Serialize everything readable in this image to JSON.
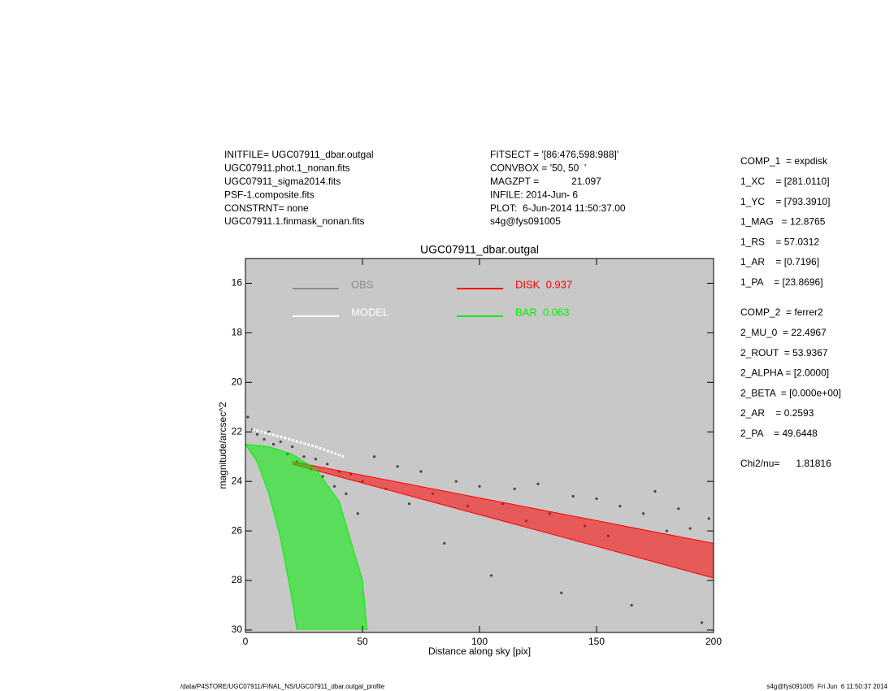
{
  "header": {
    "left": [
      "INITFILE= UGC07911_dbar.outgal",
      "UGC07911.phot.1_nonan.fits",
      "UGC07911_sigma2014.fits",
      "PSF-1.composite.fits",
      "CONSTRNT= none",
      "UGC07911.1.finmask_nonan.fits"
    ],
    "middle": [
      "FITSECT = '[86:476,598:988]'",
      "CONVBOX = '50, 50  '",
      "MAGZPT =            21.097",
      "INFILE: 2014-Jun- 6",
      "PLOT:  6-Jun-2014 11:50:37.00",
      "s4g@fys091005"
    ]
  },
  "parameters": [
    [
      "COMP_1  = expdisk",
      "1_XC    = [281.0110]",
      "1_YC    = [793.3910]",
      "1_MAG   = 12.8765",
      "1_RS    = 57.0312",
      "1_AR    = [0.7196]",
      "1_PA    = [23.8696]"
    ],
    [
      "COMP_2  = ferrer2",
      "2_MU_0  = 22.4967",
      "2_ROUT  = 53.9367",
      "2_ALPHA = [2.0000]",
      "2_BETA  = [0.000e+00]",
      "2_AR    = 0.2593",
      "2_PA    = 49.6448"
    ],
    [
      "Chi2/nu=      1.81816"
    ]
  ],
  "footer": {
    "left": "/data/P4STORE/UGC07911/FINAL_NS/UGC07911_dbar.outgal_profile",
    "right": "s4g@fys091005  Fri Jun  6 11:50:37 2014"
  },
  "chart_data": {
    "type": "scatter",
    "title": "UGC07911_dbar.outgal",
    "x_label": "Distance along sky [pix]",
    "y_label": "magnitude/arcsec^2",
    "xlim": [
      0,
      200
    ],
    "xticks": [
      0,
      50,
      100,
      150,
      200
    ],
    "ylim": [
      15,
      30.1
    ],
    "y_inverted": true,
    "yticks": [
      16,
      18,
      20,
      22,
      24,
      26,
      28,
      30
    ],
    "background": "#c8c8c8",
    "series": [
      {
        "name": "OBS",
        "kind": "points",
        "color": "#444444",
        "legend_color": "#8c8c8c",
        "x": [
          1,
          3,
          5,
          8,
          10,
          12,
          15,
          18,
          20,
          22,
          25,
          28,
          30,
          33,
          35,
          38,
          40,
          43,
          45,
          48,
          50,
          55,
          60,
          65,
          70,
          75,
          80,
          85,
          90,
          95,
          100,
          105,
          110,
          115,
          120,
          125,
          130,
          135,
          140,
          145,
          150,
          155,
          160,
          165,
          170,
          175,
          180,
          185,
          190,
          195,
          198
        ],
        "values": [
          21.4,
          21.9,
          22.1,
          22.3,
          22.0,
          22.5,
          22.4,
          22.9,
          22.6,
          23.2,
          23.0,
          23.5,
          23.1,
          23.8,
          23.3,
          24.2,
          23.6,
          24.5,
          23.7,
          25.3,
          24.0,
          23.0,
          24.3,
          23.4,
          24.9,
          23.6,
          24.5,
          26.5,
          24.0,
          25.0,
          24.2,
          27.8,
          24.9,
          24.3,
          25.6,
          24.1,
          25.3,
          28.5,
          24.6,
          25.8,
          24.7,
          26.2,
          25.0,
          29.0,
          25.3,
          24.4,
          26.0,
          25.1,
          25.9,
          29.7,
          25.5
        ]
      },
      {
        "name": "MODEL",
        "kind": "line",
        "color": "#ffffff",
        "x": [
          3,
          15,
          30,
          42
        ],
        "values": [
          21.9,
          22.2,
          22.6,
          23.0
        ]
      },
      {
        "name": "DISK  0.937",
        "kind": "band",
        "color": "#ff0000",
        "upper": {
          "x": [
            20,
            200
          ],
          "values": [
            23.2,
            26.5
          ]
        },
        "lower": {
          "x": [
            20,
            200
          ],
          "values": [
            23.3,
            27.9
          ]
        }
      },
      {
        "name": "BAR  0.063",
        "kind": "band",
        "color": "#00ee00",
        "upper": {
          "x": [
            0,
            10,
            20,
            30,
            40,
            50,
            52
          ],
          "values": [
            22.5,
            22.6,
            22.9,
            23.5,
            24.8,
            28,
            30
          ]
        },
        "lower": {
          "x": [
            0,
            5,
            10,
            15,
            20,
            22
          ],
          "values": [
            22.5,
            23.2,
            24.5,
            26.3,
            28.8,
            30
          ]
        }
      }
    ]
  }
}
